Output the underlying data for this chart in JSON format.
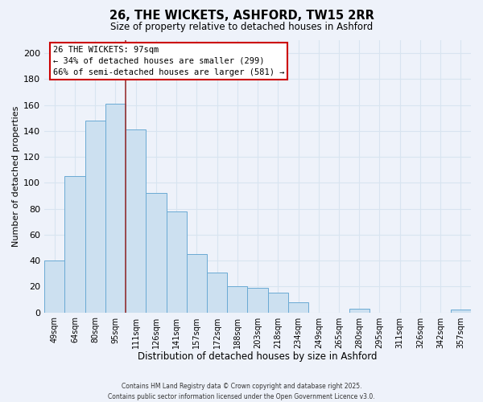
{
  "title": "26, THE WICKETS, ASHFORD, TW15 2RR",
  "subtitle": "Size of property relative to detached houses in Ashford",
  "xlabel": "Distribution of detached houses by size in Ashford",
  "ylabel": "Number of detached properties",
  "bar_labels": [
    "49sqm",
    "64sqm",
    "80sqm",
    "95sqm",
    "111sqm",
    "126sqm",
    "141sqm",
    "157sqm",
    "172sqm",
    "188sqm",
    "203sqm",
    "218sqm",
    "234sqm",
    "249sqm",
    "265sqm",
    "280sqm",
    "295sqm",
    "311sqm",
    "326sqm",
    "342sqm",
    "357sqm"
  ],
  "bar_values": [
    40,
    105,
    148,
    161,
    141,
    92,
    78,
    45,
    31,
    20,
    19,
    15,
    8,
    0,
    0,
    3,
    0,
    0,
    0,
    0,
    2
  ],
  "bar_color": "#cce0f0",
  "bar_edge_color": "#6aaad4",
  "ylim": [
    0,
    210
  ],
  "yticks": [
    0,
    20,
    40,
    60,
    80,
    100,
    120,
    140,
    160,
    180,
    200
  ],
  "property_line_x": 3.5,
  "annotation_title": "26 THE WICKETS: 97sqm",
  "annotation_line1": "← 34% of detached houses are smaller (299)",
  "annotation_line2": "66% of semi-detached houses are larger (581) →",
  "annotation_box_color": "#ffffff",
  "annotation_box_edge_color": "#cc0000",
  "vline_color": "#993333",
  "footer1": "Contains HM Land Registry data © Crown copyright and database right 2025.",
  "footer2": "Contains public sector information licensed under the Open Government Licence v3.0.",
  "background_color": "#eef2fa",
  "grid_color": "#d8e4f0"
}
